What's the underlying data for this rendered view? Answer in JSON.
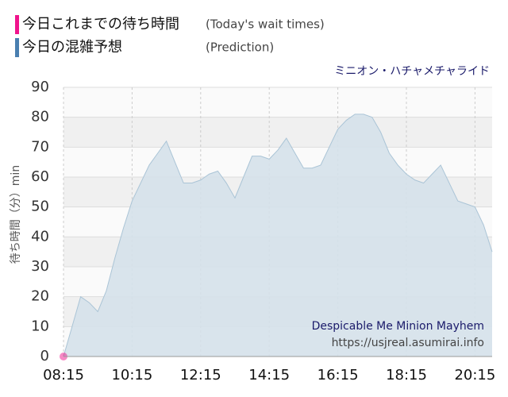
{
  "chart_data": {
    "type": "area",
    "title": "ミニオン・ハチャメチャライド",
    "y_label": "待ち時間（分）min",
    "annotations": [
      "Despicable Me Minion Mayhem",
      "https://usjreal.asumirai.info"
    ],
    "xlim": [
      "08:15",
      "20:45"
    ],
    "xticks": [
      "08:15",
      "10:15",
      "12:15",
      "14:15",
      "16:15",
      "18:15",
      "20:15"
    ],
    "ylim": [
      0,
      90
    ],
    "yticks": [
      0,
      10,
      20,
      30,
      40,
      50,
      60,
      70,
      80,
      90
    ],
    "grid": true,
    "series": [
      {
        "name": "今日これまでの待ち時間",
        "name_en": "(Today's wait times)",
        "color": "#f0148c",
        "style": "points",
        "x": [
          "08:15"
        ],
        "values": [
          0
        ]
      },
      {
        "name": "今日の混雑予想",
        "name_en": "(Prediction)",
        "color": "#4a7fb0",
        "style": "area",
        "x": [
          "08:15",
          "08:45",
          "09:00",
          "09:15",
          "09:30",
          "09:45",
          "10:00",
          "10:15",
          "10:30",
          "10:45",
          "11:00",
          "11:15",
          "11:30",
          "11:45",
          "12:00",
          "12:15",
          "12:30",
          "12:45",
          "13:00",
          "13:15",
          "13:30",
          "13:45",
          "14:00",
          "14:15",
          "14:30",
          "14:45",
          "15:00",
          "15:15",
          "15:30",
          "15:45",
          "16:00",
          "16:15",
          "16:30",
          "16:45",
          "17:00",
          "17:15",
          "17:30",
          "17:45",
          "18:00",
          "18:15",
          "18:30",
          "18:45",
          "19:00",
          "19:15",
          "19:30",
          "19:45",
          "20:00",
          "20:15",
          "20:30",
          "20:45"
        ],
        "values": [
          0,
          20,
          18,
          15,
          22,
          33,
          43,
          52,
          58,
          64,
          68,
          72,
          65,
          58,
          58,
          59,
          61,
          62,
          58,
          53,
          60,
          67,
          67,
          66,
          69,
          73,
          68,
          63,
          63,
          64,
          70,
          76,
          79,
          81,
          81,
          80,
          75,
          68,
          64,
          61,
          59,
          58,
          61,
          64,
          58,
          52,
          51,
          50,
          44,
          35
        ]
      }
    ]
  }
}
